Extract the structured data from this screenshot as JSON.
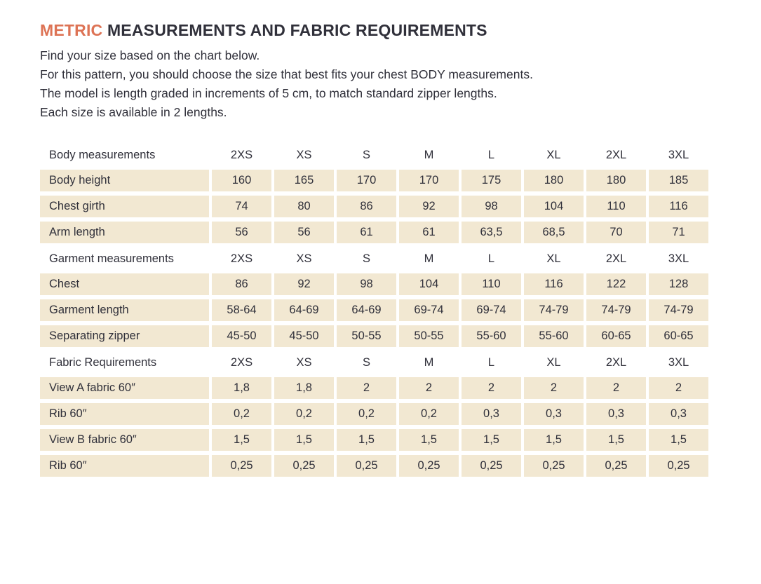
{
  "colors": {
    "accent": "#dd7355",
    "text": "#30303a",
    "cell_bg": "#f2e8d2",
    "page_bg": "#ffffff"
  },
  "header": {
    "title_highlight": "METRIC",
    "title_rest": "MEASUREMENTS AND FABRIC REQUIREMENTS",
    "intro_lines": [
      "Find your size based on the chart below.",
      "For this pattern, you should choose the size that best fits your chest BODY measurements.",
      "The model is length graded in increments of 5 cm, to match standard zipper lengths.",
      "Each size is available in 2 lengths."
    ]
  },
  "table": {
    "sizes": [
      "2XS",
      "XS",
      "S",
      "M",
      "L",
      "XL",
      "2XL",
      "3XL"
    ],
    "sections": [
      {
        "header": "Body measurements",
        "rows": [
          {
            "label": "Body height",
            "values": [
              "160",
              "165",
              "170",
              "170",
              "175",
              "180",
              "180",
              "185"
            ]
          },
          {
            "label": "Chest girth",
            "values": [
              "74",
              "80",
              "86",
              "92",
              "98",
              "104",
              "110",
              "116"
            ]
          },
          {
            "label": "Arm length",
            "values": [
              "56",
              "56",
              "61",
              "61",
              "63,5",
              "68,5",
              "70",
              "71"
            ]
          }
        ]
      },
      {
        "header": "Garment measurements",
        "rows": [
          {
            "label": "Chest",
            "values": [
              "86",
              "92",
              "98",
              "104",
              "110",
              "116",
              "122",
              "128"
            ]
          },
          {
            "label": "Garment length",
            "values": [
              "58-64",
              "64-69",
              "64-69",
              "69-74",
              "69-74",
              "74-79",
              "74-79",
              "74-79"
            ]
          },
          {
            "label": "Separating zipper",
            "values": [
              "45-50",
              "45-50",
              "50-55",
              "50-55",
              "55-60",
              "55-60",
              "60-65",
              "60-65"
            ]
          }
        ]
      },
      {
        "header": "Fabric Requirements",
        "rows": [
          {
            "label": "View A fabric 60″",
            "values": [
              "1,8",
              "1,8",
              "2",
              "2",
              "2",
              "2",
              "2",
              "2"
            ]
          },
          {
            "label": "Rib 60″",
            "values": [
              "0,2",
              "0,2",
              "0,2",
              "0,2",
              "0,3",
              "0,3",
              "0,3",
              "0,3"
            ]
          },
          {
            "label": "View B fabric 60″",
            "values": [
              "1,5",
              "1,5",
              "1,5",
              "1,5",
              "1,5",
              "1,5",
              "1,5",
              "1,5"
            ]
          },
          {
            "label": "Rib 60″",
            "values": [
              "0,25",
              "0,25",
              "0,25",
              "0,25",
              "0,25",
              "0,25",
              "0,25",
              "0,25"
            ]
          }
        ]
      }
    ]
  }
}
